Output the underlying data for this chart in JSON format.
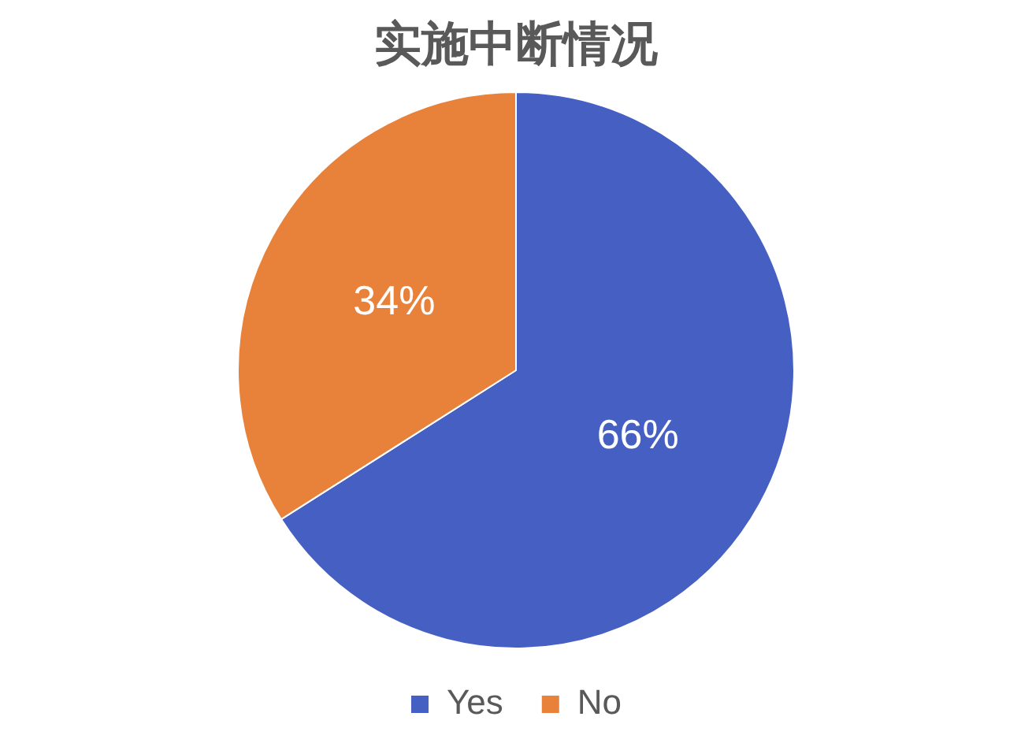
{
  "chart_data": {
    "type": "pie",
    "title": "实施中断情况",
    "categories": [
      "Yes",
      "No"
    ],
    "values": [
      66,
      34
    ],
    "colors": [
      "#4560c2",
      "#e8823a"
    ],
    "value_labels": [
      "66%",
      "34%"
    ],
    "legend": "bottom"
  }
}
